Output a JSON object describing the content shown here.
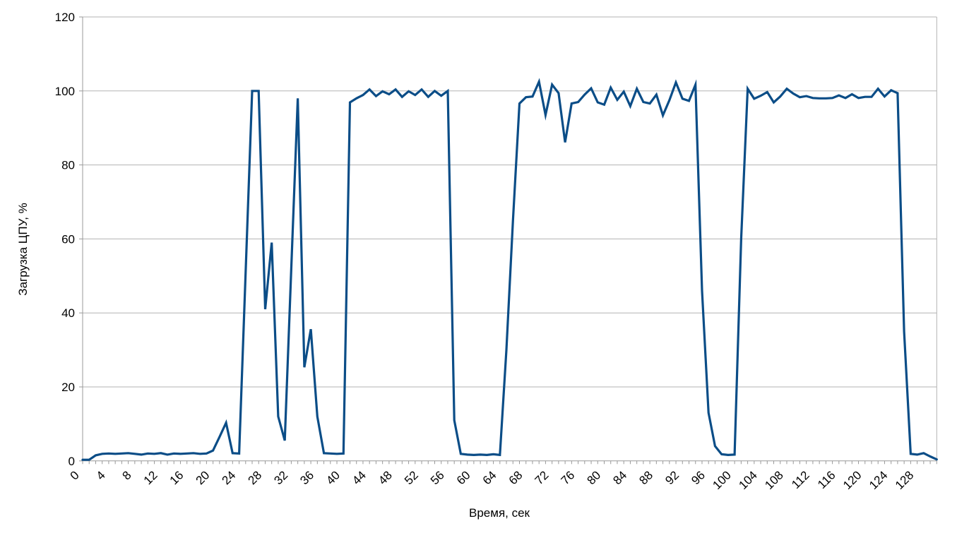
{
  "chart_data": {
    "type": "line",
    "title": "",
    "xlabel": "Время, сек",
    "ylabel": "Загрузка ЦПУ, %",
    "xlim": [
      0,
      131
    ],
    "ylim": [
      0,
      120
    ],
    "x_tick_interval": 1,
    "x_label_interval": 4,
    "y_tick_interval": 20,
    "grid": "horizontal-major",
    "legend": "none",
    "line_color": "#0b4d87",
    "grid_color": "#b3b3b3",
    "axis_color": "#999999",
    "label_color": "#000000",
    "background": "#ffffff",
    "x": [
      0,
      1,
      2,
      3,
      4,
      5,
      6,
      7,
      8,
      9,
      10,
      11,
      12,
      13,
      14,
      15,
      16,
      17,
      18,
      19,
      20,
      21,
      22,
      23,
      24,
      25,
      26,
      27,
      28,
      29,
      30,
      31,
      32,
      33,
      34,
      35,
      36,
      37,
      38,
      39,
      40,
      41,
      42,
      43,
      44,
      45,
      46,
      47,
      48,
      49,
      50,
      51,
      52,
      53,
      54,
      55,
      56,
      57,
      58,
      59,
      60,
      61,
      62,
      63,
      64,
      65,
      66,
      67,
      68,
      69,
      70,
      71,
      72,
      73,
      74,
      75,
      76,
      77,
      78,
      79,
      80,
      81,
      82,
      83,
      84,
      85,
      86,
      87,
      88,
      89,
      90,
      91,
      92,
      93,
      94,
      95,
      96,
      97,
      98,
      99,
      100,
      101,
      102,
      103,
      104,
      105,
      106,
      107,
      108,
      109,
      110,
      111,
      112,
      113,
      114,
      115,
      116,
      117,
      118,
      119,
      120,
      121,
      122,
      123,
      124,
      125,
      126,
      127,
      128,
      129,
      130,
      131
    ],
    "values": [
      0.3,
      0.3,
      1.5,
      1.9,
      2,
      1.9,
      2,
      2.1,
      1.9,
      1.7,
      2,
      1.9,
      2.1,
      1.7,
      2,
      1.9,
      2,
      2.1,
      1.9,
      2,
      2.8,
      6.5,
      10.3,
      2.1,
      2,
      51,
      100,
      100,
      41,
      59,
      12,
      5.5,
      52,
      98,
      25.3,
      35.6,
      12,
      2.1,
      2,
      1.9,
      2,
      96.9,
      98,
      98.9,
      100.4,
      98.6,
      99.9,
      99.1,
      100.4,
      98.4,
      99.9,
      98.9,
      100.4,
      98.4,
      100,
      98.7,
      100,
      11,
      1.9,
      1.7,
      1.6,
      1.7,
      1.6,
      1.8,
      1.6,
      30,
      65,
      96.6,
      98.3,
      98.5,
      102.5,
      93.5,
      101.7,
      99.4,
      86.1,
      96.6,
      97,
      99,
      100.7,
      96.9,
      96.3,
      100.9,
      97.6,
      99.8,
      95.9,
      100.6,
      97,
      96.6,
      99,
      93.4,
      97.5,
      102.3,
      97.9,
      97.3,
      101.7,
      46,
      13,
      4,
      1.8,
      1.6,
      1.7,
      60,
      100.6,
      97.9,
      98.7,
      99.7,
      96.9,
      98.5,
      100.6,
      99.3,
      98.3,
      98.6,
      98.1,
      98,
      98,
      98.1,
      98.8,
      98.1,
      99.1,
      98.1,
      98.4,
      98.4,
      100.6,
      98.5,
      100.2,
      99.4,
      35,
      1.9,
      1.7,
      2.1,
      1.2,
      0.4
    ]
  }
}
